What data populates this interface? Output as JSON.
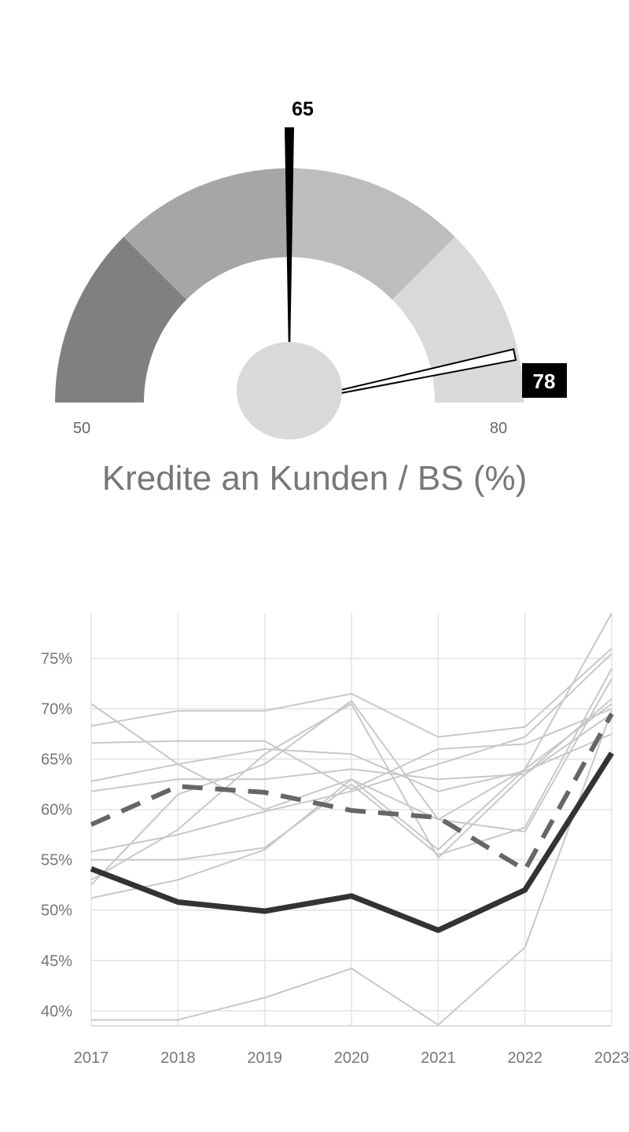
{
  "gauge": {
    "title": "Kredite an Kunden / BS (%)",
    "min": 50,
    "max": 80,
    "min_label": "50",
    "max_label": "80",
    "value": 65,
    "value_label": "65",
    "benchmark": 78,
    "benchmark_label": "78",
    "bands": [
      {
        "from": 50,
        "to": 57.5,
        "color": "#808080"
      },
      {
        "from": 57.5,
        "to": 65,
        "color": "#a6a6a6"
      },
      {
        "from": 65,
        "to": 72.5,
        "color": "#bdbdbd"
      },
      {
        "from": 72.5,
        "to": 80,
        "color": "#d9d9d9"
      }
    ],
    "hub_color": "#d9d9d9",
    "needle_color": "#000000"
  },
  "chart_data": {
    "type": "line",
    "x": [
      "2017",
      "2018",
      "2019",
      "2020",
      "2021",
      "2022",
      "2023"
    ],
    "ylim": [
      38.5,
      79.5
    ],
    "yticks": [
      40,
      45,
      50,
      55,
      60,
      65,
      70,
      75
    ],
    "ytick_labels": [
      "40%",
      "45%",
      "50%",
      "55%",
      "60%",
      "65%",
      "70%",
      "75%"
    ],
    "grid": true,
    "series": [
      {
        "style": "thin",
        "values": [
          70.5,
          64.5,
          60.0,
          63.0,
          56.0,
          64.0,
          79.5
        ]
      },
      {
        "style": "thin",
        "values": [
          68.3,
          69.8,
          69.8,
          71.5,
          67.2,
          68.2,
          76.0
        ]
      },
      {
        "style": "thin",
        "values": [
          66.6,
          66.8,
          66.8,
          62.0,
          66.0,
          66.5,
          70.0
        ]
      },
      {
        "style": "thin",
        "values": [
          62.8,
          64.5,
          66.0,
          65.5,
          61.8,
          63.8,
          67.5
        ]
      },
      {
        "style": "thin",
        "values": [
          61.8,
          63.0,
          63.0,
          64.0,
          63.0,
          63.5,
          69.5
        ]
      },
      {
        "style": "thin",
        "values": [
          55.8,
          57.5,
          59.8,
          61.8,
          64.5,
          67.2,
          75.5
        ]
      },
      {
        "style": "thin",
        "values": [
          55.0,
          55.0,
          56.2,
          62.5,
          55.5,
          58.2,
          74.0
        ]
      },
      {
        "style": "thin",
        "values": [
          51.2,
          53.0,
          56.0,
          63.0,
          59.0,
          57.8,
          73.0
        ]
      },
      {
        "style": "thin",
        "values": [
          53.0,
          58.0,
          65.5,
          70.5,
          55.2,
          63.5,
          71.0
        ]
      },
      {
        "style": "thin",
        "values": [
          39.1,
          39.1,
          41.3,
          44.2,
          38.6,
          46.3,
          69.8
        ]
      },
      {
        "style": "thin",
        "values": [
          52.5,
          61.5,
          64.5,
          70.8,
          59.0,
          64.0,
          70.5
        ]
      },
      {
        "style": "dashed",
        "values": [
          58.5,
          62.3,
          61.7,
          59.9,
          59.2,
          54.0,
          69.5
        ]
      },
      {
        "style": "bold",
        "values": [
          54.1,
          50.8,
          49.9,
          51.4,
          48.0,
          52.0,
          65.6
        ]
      }
    ]
  }
}
